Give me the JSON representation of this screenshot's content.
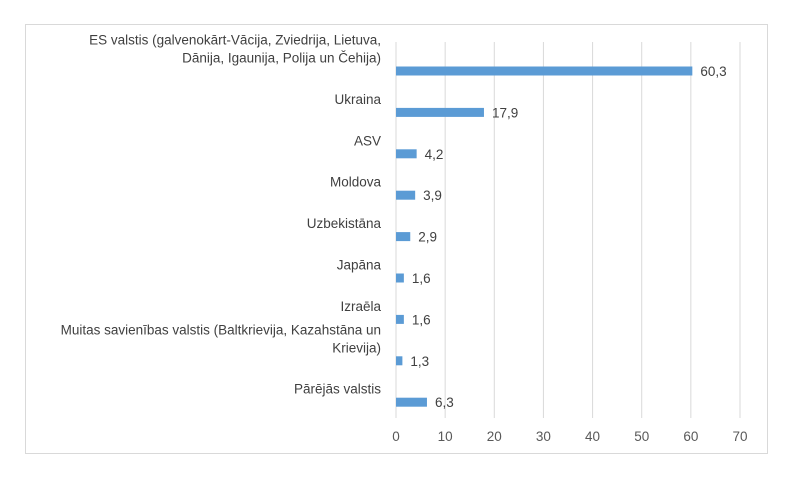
{
  "chart_data": {
    "type": "bar",
    "orientation": "horizontal",
    "title": "",
    "xlabel": "",
    "ylabel": "",
    "categories": [
      [
        "ES valstis (galvenokārt-Vācija, Zviedrija, Lietuva,",
        "Dānija, Igaunija, Polija un Čehija)"
      ],
      [
        "Ukraina"
      ],
      [
        "ASV"
      ],
      [
        "Moldova"
      ],
      [
        "Uzbekistāna"
      ],
      [
        "Japāna"
      ],
      [
        "Izraēla"
      ],
      [
        "Muitas savienības valstis (Baltkrievija, Kazahstāna un",
        "Krievija)"
      ],
      [
        "Pārējās valstis"
      ]
    ],
    "values": [
      60.3,
      17.9,
      4.2,
      3.9,
      2.9,
      1.6,
      1.6,
      1.3,
      6.3
    ],
    "value_labels": [
      "60,3",
      "17,9",
      "4,2",
      "3,9",
      "2,9",
      "1,6",
      "1,6",
      "1,3",
      "6,3"
    ],
    "xlim": [
      0,
      70
    ],
    "xticks": [
      0,
      10,
      20,
      30,
      40,
      50,
      60,
      70
    ],
    "grid": "vertical",
    "legend": "none",
    "bar_color": "#5b9bd5",
    "grid_color": "#d9d9d9"
  }
}
